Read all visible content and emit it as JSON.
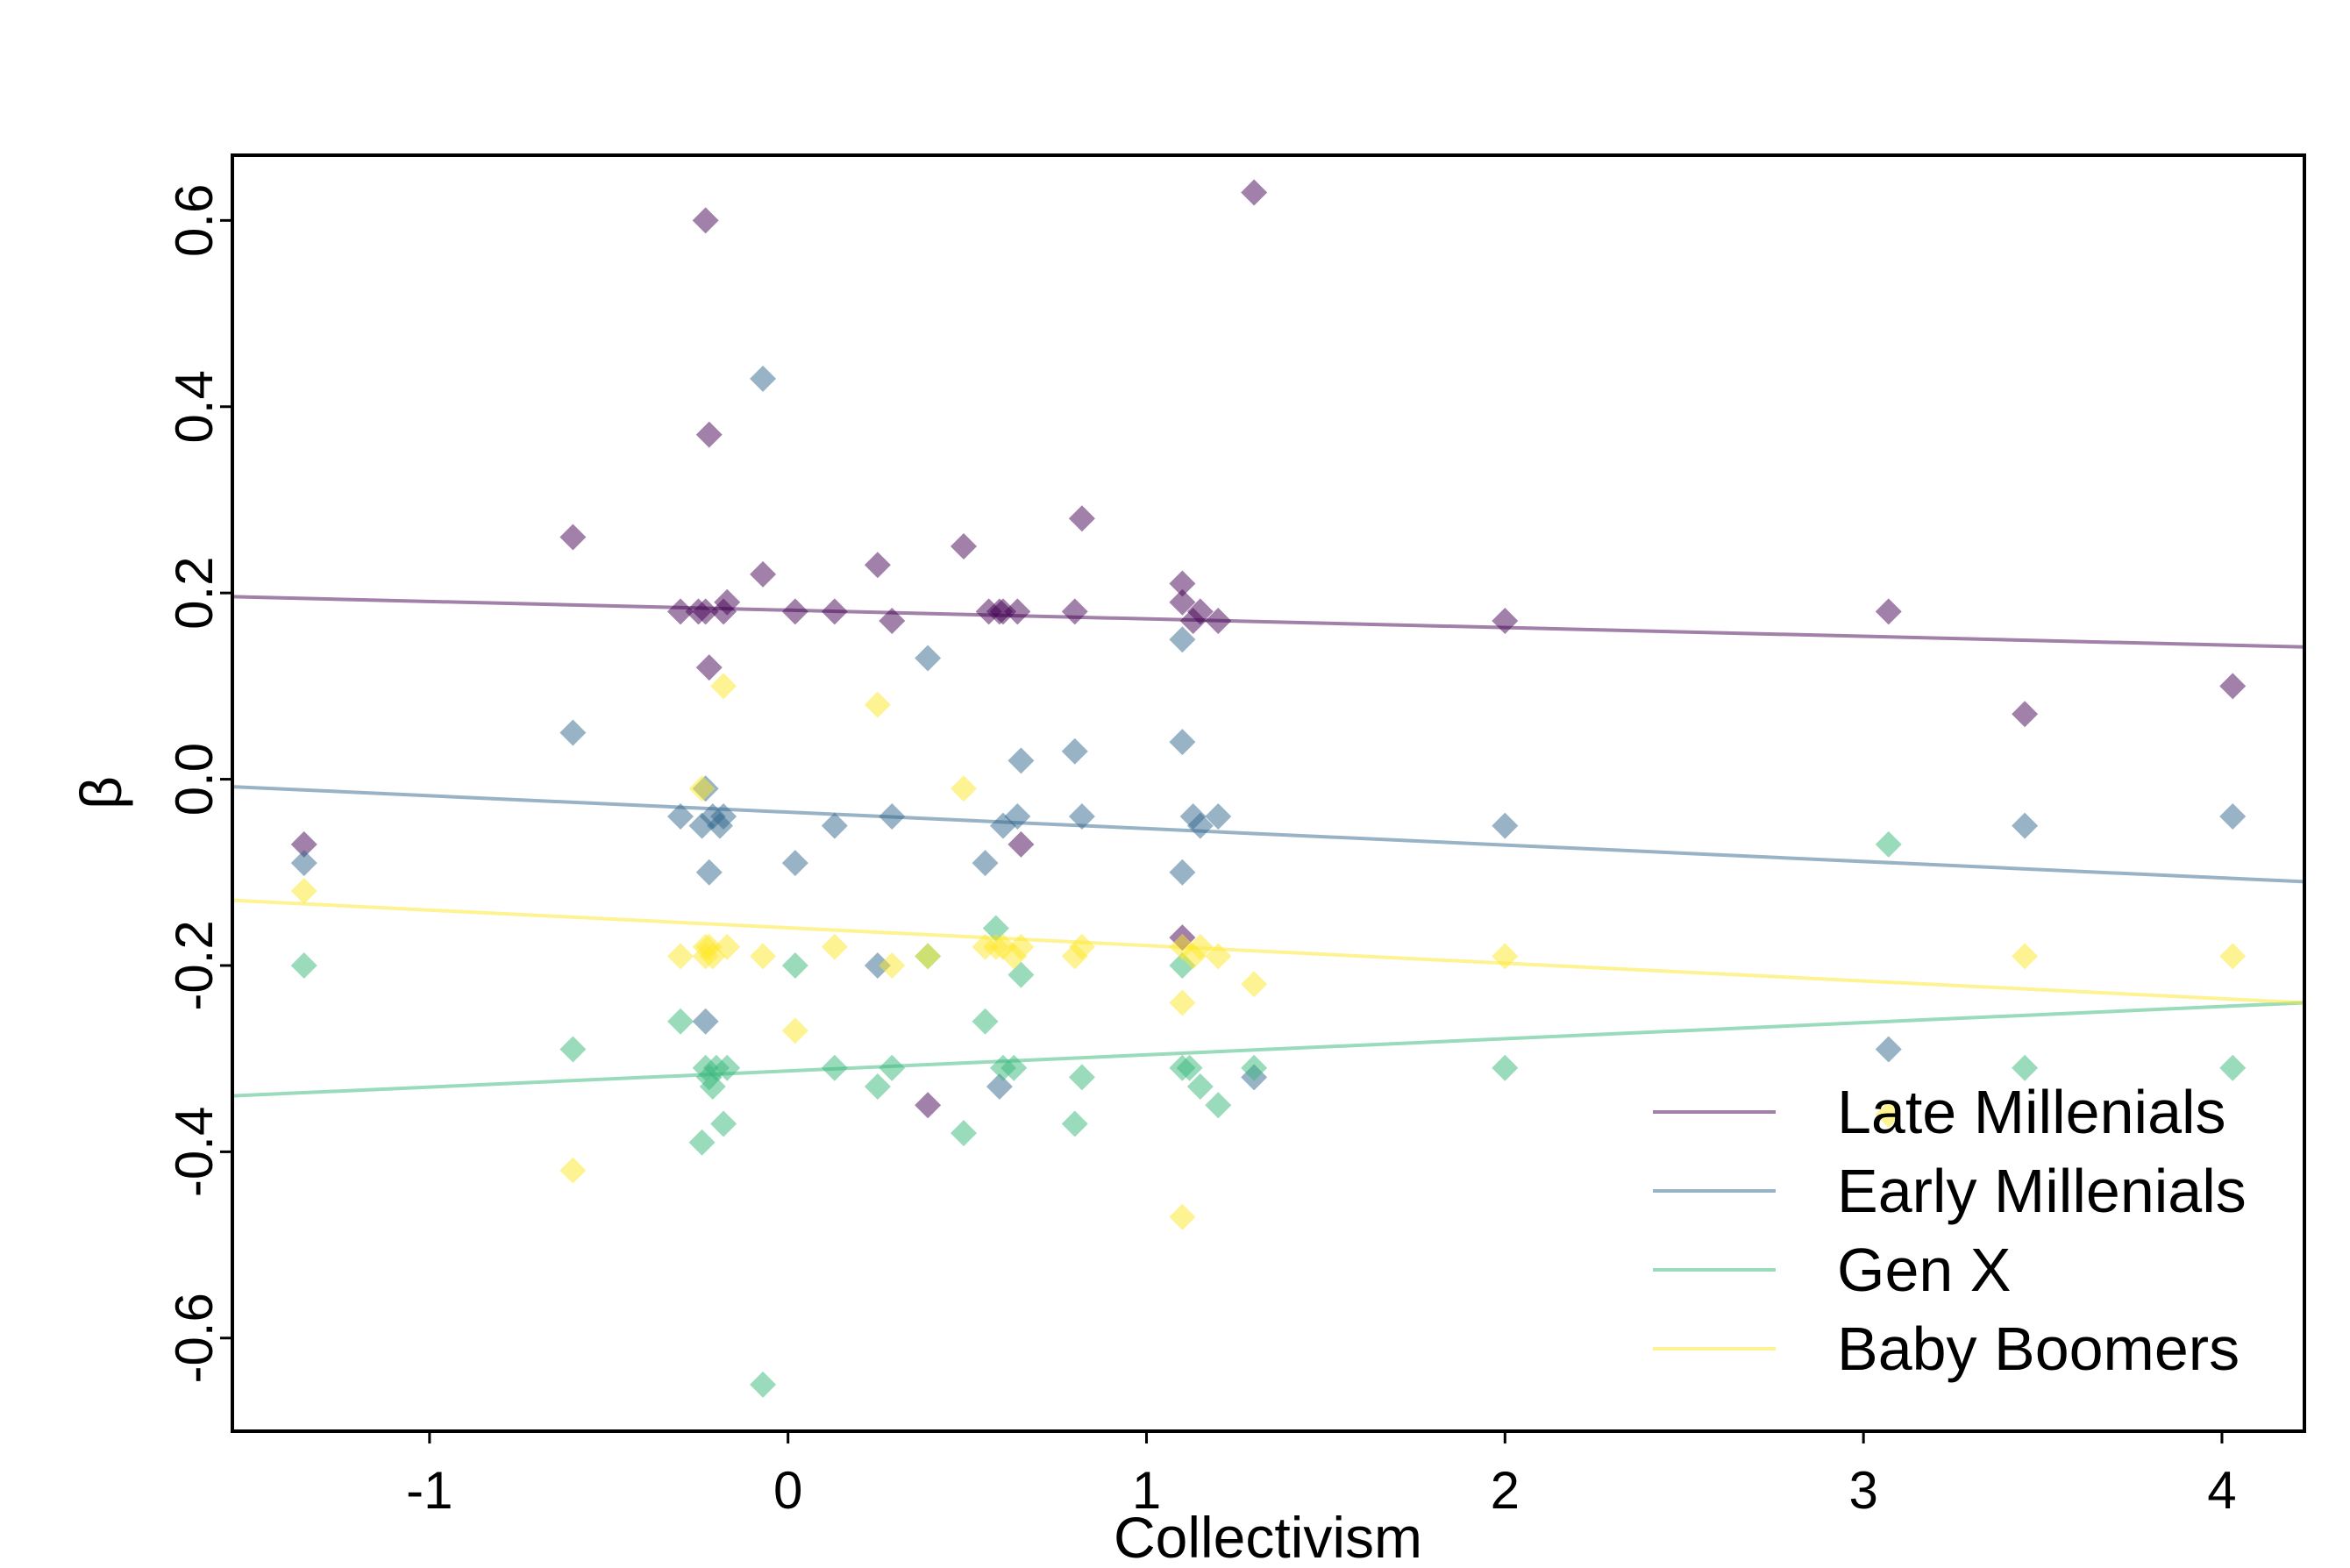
{
  "chart_data": {
    "type": "scatter",
    "xlabel": "Collectivism",
    "ylabel": "β",
    "xlim": [
      -1.55,
      4.23
    ],
    "ylim": [
      -0.7,
      0.67
    ],
    "x_ticks": [
      -1,
      0,
      1,
      2,
      3,
      4
    ],
    "x_tick_labels": [
      "-1",
      "0",
      "1",
      "2",
      "3",
      "4"
    ],
    "y_ticks": [
      -0.6,
      -0.4,
      -0.2,
      0.0,
      0.2,
      0.4,
      0.6
    ],
    "y_tick_labels": [
      "-0.6",
      "-0.4",
      "-0.2",
      "0.0",
      "0.2",
      "0.4",
      "0.6"
    ],
    "grid": false,
    "legend_position": "bottom-right",
    "series": [
      {
        "name": "Late Millenials",
        "color": "#440154",
        "line": [
          [
            -1.55,
            0.196
          ],
          [
            4.23,
            0.142
          ]
        ],
        "points": [
          [
            -1.35,
            -0.07
          ],
          [
            -0.6,
            0.26
          ],
          [
            -0.3,
            0.18
          ],
          [
            -0.25,
            0.18
          ],
          [
            -0.23,
            0.6
          ],
          [
            -0.23,
            0.18
          ],
          [
            -0.22,
            0.12
          ],
          [
            -0.22,
            0.37
          ],
          [
            -0.18,
            0.18
          ],
          [
            -0.17,
            0.19
          ],
          [
            -0.07,
            0.22
          ],
          [
            0.02,
            0.18
          ],
          [
            0.13,
            0.18
          ],
          [
            0.25,
            0.23
          ],
          [
            0.29,
            0.17
          ],
          [
            0.39,
            -0.35
          ],
          [
            0.49,
            0.25
          ],
          [
            0.56,
            0.18
          ],
          [
            0.59,
            0.18
          ],
          [
            0.6,
            0.18
          ],
          [
            0.64,
            0.18
          ],
          [
            0.65,
            -0.07
          ],
          [
            0.8,
            0.18
          ],
          [
            0.82,
            0.28
          ],
          [
            1.1,
            0.21
          ],
          [
            1.1,
            0.19
          ],
          [
            1.1,
            -0.17
          ],
          [
            1.13,
            0.17
          ],
          [
            1.15,
            0.18
          ],
          [
            1.2,
            0.17
          ],
          [
            1.3,
            0.63
          ],
          [
            2.0,
            0.17
          ],
          [
            3.07,
            0.18
          ],
          [
            3.45,
            0.07
          ],
          [
            4.03,
            0.1
          ]
        ]
      },
      {
        "name": "Early Millenials",
        "color": "#31688e",
        "line": [
          [
            -1.55,
            -0.008
          ],
          [
            4.23,
            -0.11
          ]
        ],
        "points": [
          [
            -1.35,
            -0.09
          ],
          [
            -0.6,
            0.05
          ],
          [
            -0.3,
            -0.04
          ],
          [
            -0.24,
            -0.05
          ],
          [
            -0.23,
            -0.26
          ],
          [
            -0.23,
            -0.01
          ],
          [
            -0.22,
            -0.1
          ],
          [
            -0.21,
            -0.04
          ],
          [
            -0.19,
            -0.05
          ],
          [
            -0.18,
            -0.04
          ],
          [
            -0.07,
            0.43
          ],
          [
            0.02,
            -0.09
          ],
          [
            0.13,
            -0.05
          ],
          [
            0.25,
            -0.2
          ],
          [
            0.29,
            -0.04
          ],
          [
            0.39,
            0.13
          ],
          [
            0.55,
            -0.09
          ],
          [
            0.59,
            -0.33
          ],
          [
            0.6,
            -0.05
          ],
          [
            0.64,
            -0.04
          ],
          [
            0.65,
            0.02
          ],
          [
            0.8,
            0.03
          ],
          [
            0.82,
            -0.04
          ],
          [
            1.1,
            0.15
          ],
          [
            1.1,
            0.04
          ],
          [
            1.1,
            -0.1
          ],
          [
            1.13,
            -0.04
          ],
          [
            1.15,
            -0.05
          ],
          [
            1.2,
            -0.04
          ],
          [
            1.3,
            -0.32
          ],
          [
            2.0,
            -0.05
          ],
          [
            3.07,
            -0.29
          ],
          [
            3.45,
            -0.05
          ],
          [
            4.03,
            -0.04
          ]
        ]
      },
      {
        "name": "Gen X",
        "color": "#35b779",
        "line": [
          [
            -1.55,
            -0.34
          ],
          [
            4.23,
            -0.24
          ]
        ],
        "points": [
          [
            -1.35,
            -0.2
          ],
          [
            -0.6,
            -0.29
          ],
          [
            -0.3,
            -0.26
          ],
          [
            -0.24,
            -0.39
          ],
          [
            -0.23,
            -0.31
          ],
          [
            -0.22,
            -0.32
          ],
          [
            -0.21,
            -0.33
          ],
          [
            -0.2,
            -0.31
          ],
          [
            -0.18,
            -0.37
          ],
          [
            -0.17,
            -0.31
          ],
          [
            -0.07,
            -0.65
          ],
          [
            0.02,
            -0.2
          ],
          [
            0.13,
            -0.31
          ],
          [
            0.25,
            -0.33
          ],
          [
            0.29,
            -0.31
          ],
          [
            0.39,
            -0.19
          ],
          [
            0.49,
            -0.38
          ],
          [
            0.55,
            -0.26
          ],
          [
            0.58,
            -0.16
          ],
          [
            0.6,
            -0.31
          ],
          [
            0.63,
            -0.31
          ],
          [
            0.65,
            -0.21
          ],
          [
            0.8,
            -0.37
          ],
          [
            0.82,
            -0.32
          ],
          [
            1.1,
            -0.2
          ],
          [
            1.1,
            -0.31
          ],
          [
            1.12,
            -0.31
          ],
          [
            1.15,
            -0.33
          ],
          [
            1.2,
            -0.35
          ],
          [
            1.3,
            -0.31
          ],
          [
            2.0,
            -0.31
          ],
          [
            3.07,
            -0.07
          ],
          [
            3.45,
            -0.31
          ],
          [
            4.03,
            -0.31
          ]
        ]
      },
      {
        "name": "Baby Boomers",
        "color": "#fde725",
        "line": [
          [
            -1.55,
            -0.13
          ],
          [
            4.23,
            -0.24
          ]
        ],
        "points": [
          [
            -1.35,
            -0.12
          ],
          [
            -0.6,
            -0.42
          ],
          [
            -0.3,
            -0.19
          ],
          [
            -0.24,
            -0.01
          ],
          [
            -0.23,
            -0.18
          ],
          [
            -0.23,
            -0.19
          ],
          [
            -0.22,
            -0.18
          ],
          [
            -0.21,
            -0.19
          ],
          [
            -0.18,
            0.1
          ],
          [
            -0.17,
            -0.18
          ],
          [
            -0.07,
            -0.19
          ],
          [
            0.02,
            -0.27
          ],
          [
            0.13,
            -0.18
          ],
          [
            0.25,
            0.08
          ],
          [
            0.29,
            -0.2
          ],
          [
            0.39,
            -0.19
          ],
          [
            0.49,
            -0.01
          ],
          [
            0.55,
            -0.18
          ],
          [
            0.58,
            -0.18
          ],
          [
            0.6,
            -0.18
          ],
          [
            0.63,
            -0.19
          ],
          [
            0.65,
            -0.18
          ],
          [
            0.8,
            -0.19
          ],
          [
            0.82,
            -0.18
          ],
          [
            1.1,
            -0.24
          ],
          [
            1.1,
            -0.47
          ],
          [
            1.1,
            -0.18
          ],
          [
            1.13,
            -0.19
          ],
          [
            1.15,
            -0.18
          ],
          [
            1.2,
            -0.19
          ],
          [
            1.3,
            -0.22
          ],
          [
            2.0,
            -0.19
          ],
          [
            3.07,
            -0.36
          ],
          [
            3.45,
            -0.19
          ],
          [
            4.03,
            -0.19
          ]
        ]
      }
    ]
  }
}
